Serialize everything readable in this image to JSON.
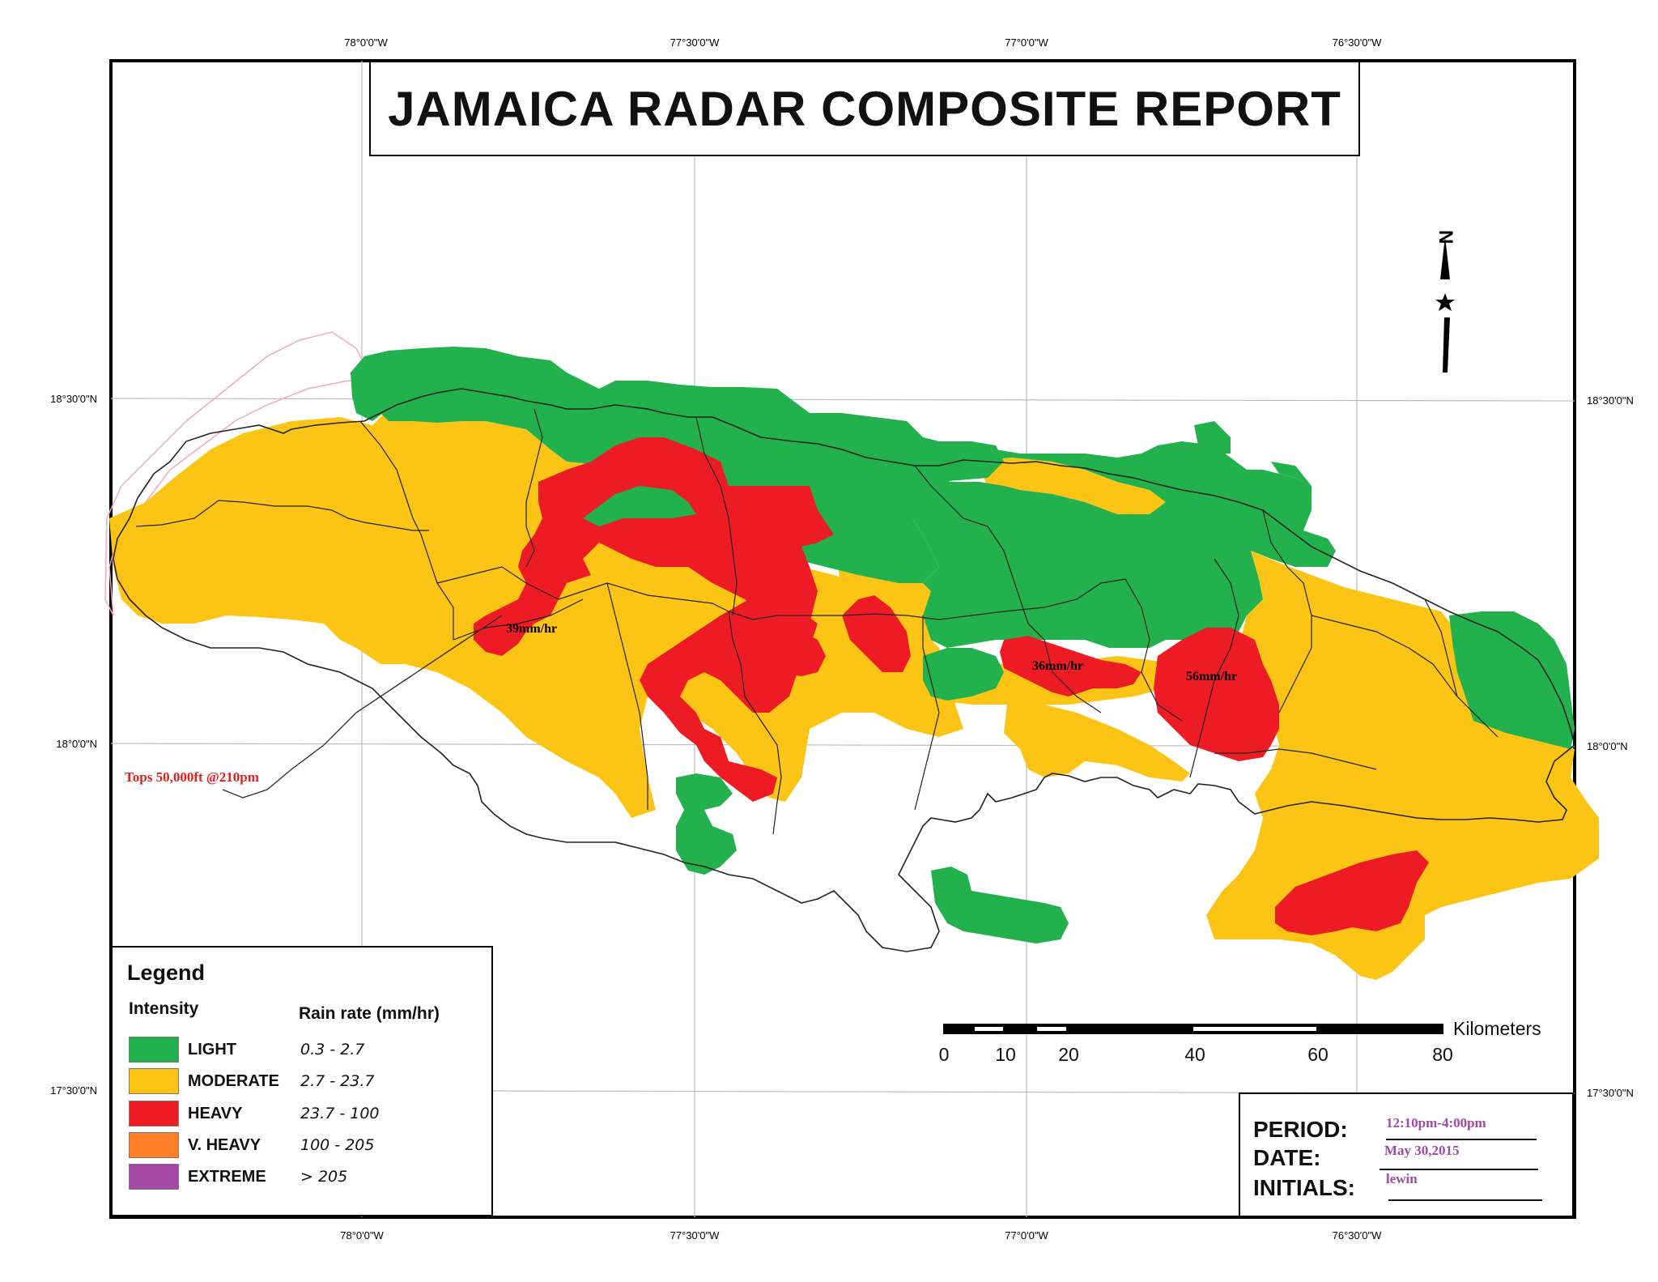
{
  "title": "JAMAICA RADAR COMPOSITE REPORT",
  "graticule": {
    "top_longitudes": [
      "78°0'0\"W",
      "77°30'0\"W",
      "77°0'0\"W",
      "76°30'0\"W"
    ],
    "bottom_longitudes": [
      "78°0'0\"W",
      "77°30'0\"W",
      "77°0'0\"W",
      "76°30'0\"W"
    ],
    "left_latitudes": [
      "18°30'0\"N",
      "18°0'0\"N",
      "17°30'0\"N"
    ],
    "right_latitudes": [
      "18°30'0\"N",
      "18°0'0\"N",
      "17°30'0\"N"
    ]
  },
  "annotations": {
    "cell_west": "39mm/hr",
    "cell_central": "36mm/hr",
    "cell_east": "56mm/hr",
    "tops": "Tops 50,000ft @210pm"
  },
  "north_arrow": {
    "letter": "N"
  },
  "scale_bar": {
    "unit": "Kilometers",
    "ticks": [
      "0",
      "10",
      "20",
      "40",
      "60",
      "80"
    ]
  },
  "legend": {
    "title": "Legend",
    "header_intensity": "Intensity",
    "header_rate": "Rain rate (mm/hr)",
    "items": [
      {
        "label": "LIGHT",
        "range": "0.3 - 2.7",
        "color": "#22b14c"
      },
      {
        "label": "MODERATE",
        "range": "2.7 - 23.7",
        "color": "#fcc515"
      },
      {
        "label": "HEAVY",
        "range": "23.7 - 100",
        "color": "#ed1c24"
      },
      {
        "label": "V. HEAVY",
        "range": "100 - 205",
        "color": "#ff7f27"
      },
      {
        "label": "EXTREME",
        "range": "> 205",
        "color": "#a349a4"
      }
    ]
  },
  "info": {
    "period_label": "PERIOD:",
    "period_value": "12:10pm-4:00pm",
    "date_label": "DATE:",
    "date_value": "May 30,2015",
    "initials_label": "INITIALS:",
    "initials_value": "lewin"
  }
}
